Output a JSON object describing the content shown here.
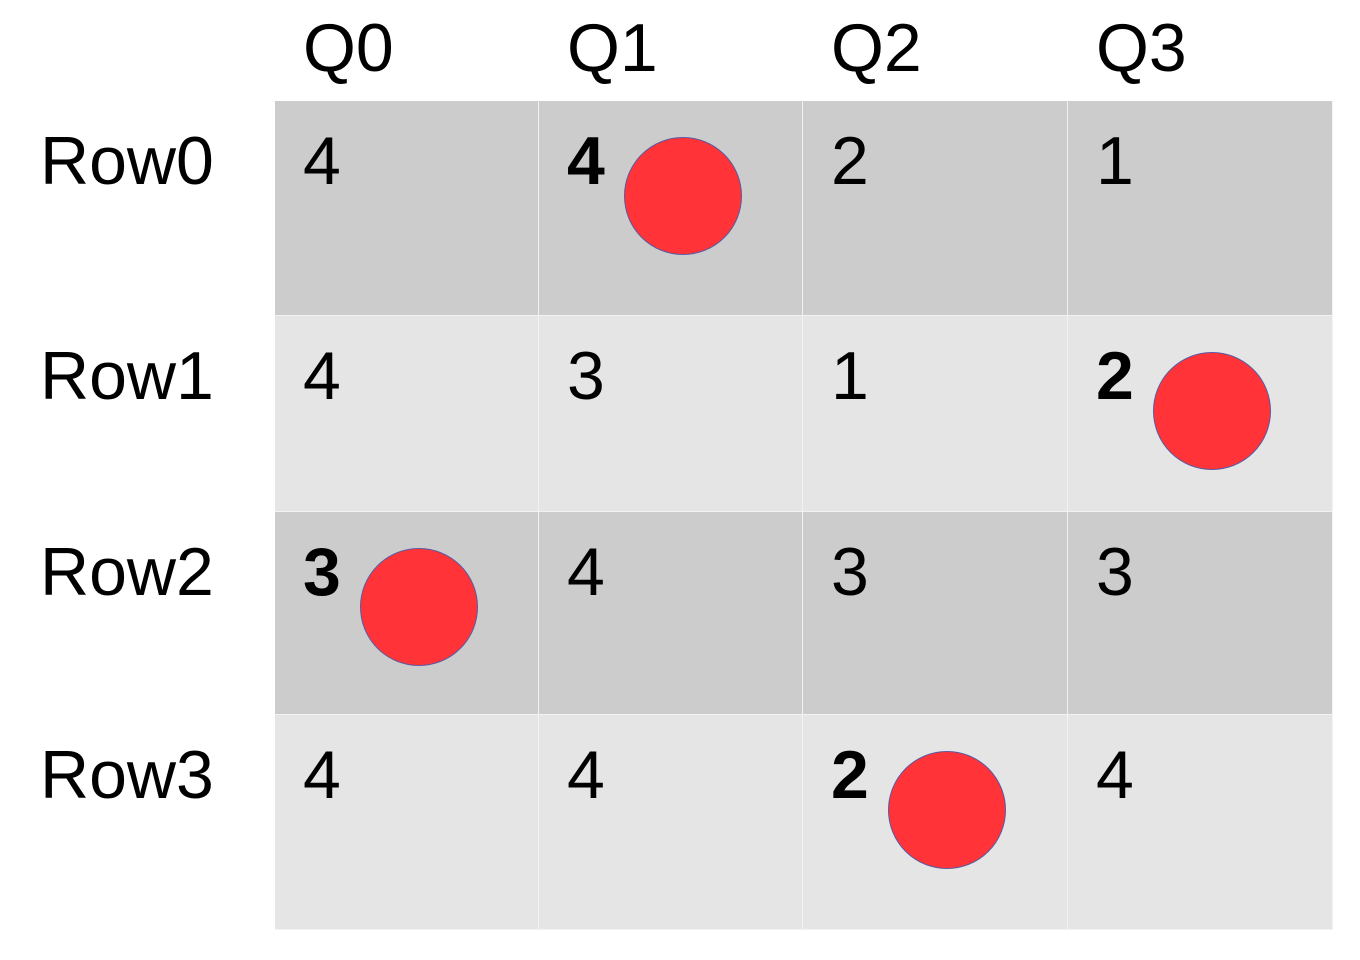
{
  "columns": [
    "Q0",
    "Q1",
    "Q2",
    "Q3"
  ],
  "rows": [
    "Row0",
    "Row1",
    "Row2",
    "Row3"
  ],
  "cells": [
    [
      {
        "value": "4",
        "bold": false,
        "marker": false
      },
      {
        "value": "4",
        "bold": true,
        "marker": true
      },
      {
        "value": "2",
        "bold": false,
        "marker": false
      },
      {
        "value": "1",
        "bold": false,
        "marker": false
      }
    ],
    [
      {
        "value": "4",
        "bold": false,
        "marker": false
      },
      {
        "value": "3",
        "bold": false,
        "marker": false
      },
      {
        "value": "1",
        "bold": false,
        "marker": false
      },
      {
        "value": "2",
        "bold": true,
        "marker": true
      }
    ],
    [
      {
        "value": "3",
        "bold": true,
        "marker": true
      },
      {
        "value": "4",
        "bold": false,
        "marker": false
      },
      {
        "value": "3",
        "bold": false,
        "marker": false
      },
      {
        "value": "3",
        "bold": false,
        "marker": false
      }
    ],
    [
      {
        "value": "4",
        "bold": false,
        "marker": false
      },
      {
        "value": "4",
        "bold": false,
        "marker": false
      },
      {
        "value": "2",
        "bold": true,
        "marker": true
      },
      {
        "value": "4",
        "bold": false,
        "marker": false
      }
    ]
  ],
  "colors": {
    "row_fill_even": "#cccccc",
    "row_fill_odd": "#e5e5e5",
    "marker": "#ff3338"
  }
}
